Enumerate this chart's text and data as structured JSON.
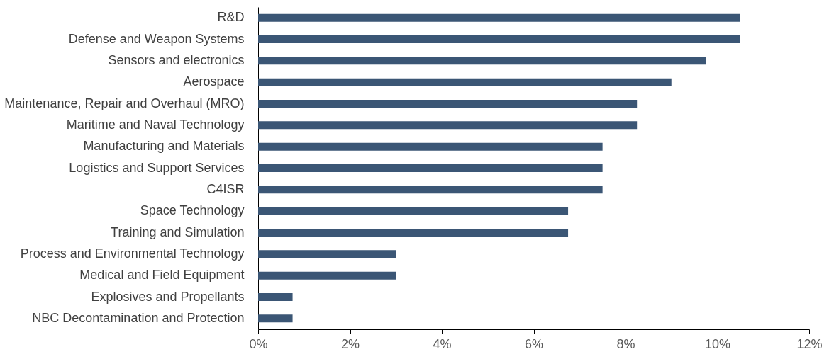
{
  "chart_data": {
    "type": "bar",
    "orientation": "horizontal",
    "categories": [
      "R&D",
      "Defense and Weapon Systems",
      "Sensors and electronics",
      "Aerospace",
      "Maintenance, Repair and Overhaul (MRO)",
      "Maritime and Naval Technology",
      "Manufacturing and Materials",
      "Logistics and Support Services",
      "C4ISR",
      "Space Technology",
      "Training and Simulation",
      "Process and Environmental Technology",
      "Medical and Field Equipment",
      "Explosives and Propellants",
      "NBC Decontamination and Protection"
    ],
    "values": [
      10.5,
      10.5,
      9.75,
      9,
      8.25,
      8.25,
      7.5,
      7.5,
      7.5,
      6.75,
      6.75,
      3,
      3,
      0.75,
      0.75
    ],
    "color": "#3b5675",
    "xlim": [
      0,
      12
    ],
    "xticks": [
      {
        "value": 0,
        "label": "0%"
      },
      {
        "value": 2,
        "label": "2%"
      },
      {
        "value": 4,
        "label": "4%"
      },
      {
        "value": 6,
        "label": "6%"
      },
      {
        "value": 8,
        "label": "8%"
      },
      {
        "value": 10,
        "label": "10%"
      },
      {
        "value": 12,
        "label": "12%"
      }
    ],
    "grid": false
  }
}
